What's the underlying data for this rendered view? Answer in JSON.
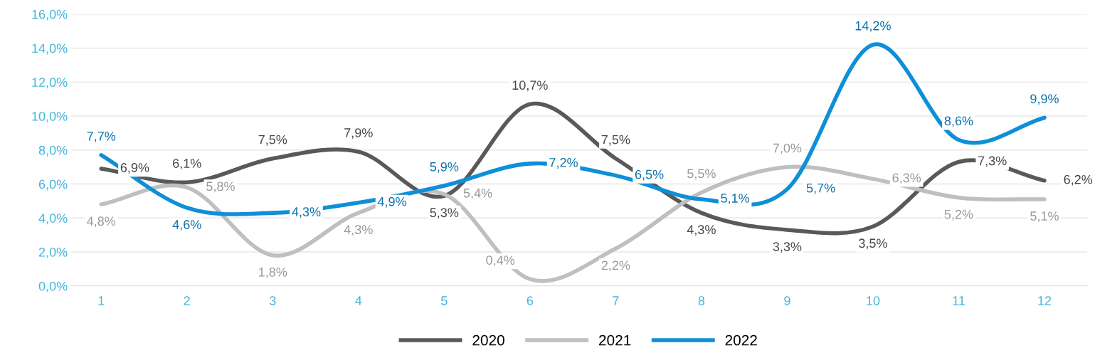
{
  "chart_data": {
    "type": "line",
    "categories": [
      "1",
      "2",
      "3",
      "4",
      "5",
      "6",
      "7",
      "8",
      "9",
      "10",
      "11",
      "12"
    ],
    "series": [
      {
        "name": "2020",
        "color": "#595959",
        "values": [
          6.9,
          6.1,
          7.5,
          7.9,
          5.3,
          10.7,
          7.5,
          4.3,
          3.3,
          3.5,
          7.3,
          6.2
        ],
        "value_labels": [
          "6,9%",
          "6,1%",
          "7,5%",
          "7,9%",
          "5,3%",
          "10,7%",
          "7,5%",
          "4,3%",
          "3,3%",
          "3,5%",
          "7,3%",
          "6,2%"
        ]
      },
      {
        "name": "2021",
        "color": "#bfbfbf",
        "values": [
          4.8,
          5.8,
          1.8,
          4.3,
          5.4,
          0.4,
          2.2,
          5.5,
          7.0,
          6.3,
          5.2,
          5.1
        ],
        "value_labels": [
          "4,8%",
          "5,8%",
          "1,8%",
          "4,3%",
          "5,4%",
          "0,4%",
          "2,2%",
          "5,5%",
          "7,0%",
          "6,3%",
          "5,2%",
          "5,1%"
        ]
      },
      {
        "name": "2022",
        "color": "#0e8fd8",
        "values": [
          7.7,
          4.6,
          4.3,
          4.9,
          5.9,
          7.2,
          6.5,
          5.1,
          5.7,
          14.2,
          8.6,
          9.9
        ],
        "value_labels": [
          "7,7%",
          "4,6%",
          "4,3%",
          "4,9%",
          "5,9%",
          "7,2%",
          "6,5%",
          "5,1%",
          "5,7%",
          "14,2%",
          "8,6%",
          "9,9%"
        ]
      }
    ],
    "ylim": [
      0,
      16
    ],
    "yticks": [
      {
        "value": 0,
        "label": "0,0%"
      },
      {
        "value": 2,
        "label": "2,0%"
      },
      {
        "value": 4,
        "label": "4,0%"
      },
      {
        "value": 6,
        "label": "6,0%"
      },
      {
        "value": 8,
        "label": "8,0%"
      },
      {
        "value": 10,
        "label": "10,0%"
      },
      {
        "value": 12,
        "label": "12,0%"
      },
      {
        "value": 14,
        "label": "14,0%"
      },
      {
        "value": 16,
        "label": "16,0%"
      }
    ],
    "grid": "y",
    "legend": "bottom",
    "line_style": "solid",
    "marker": "none"
  }
}
